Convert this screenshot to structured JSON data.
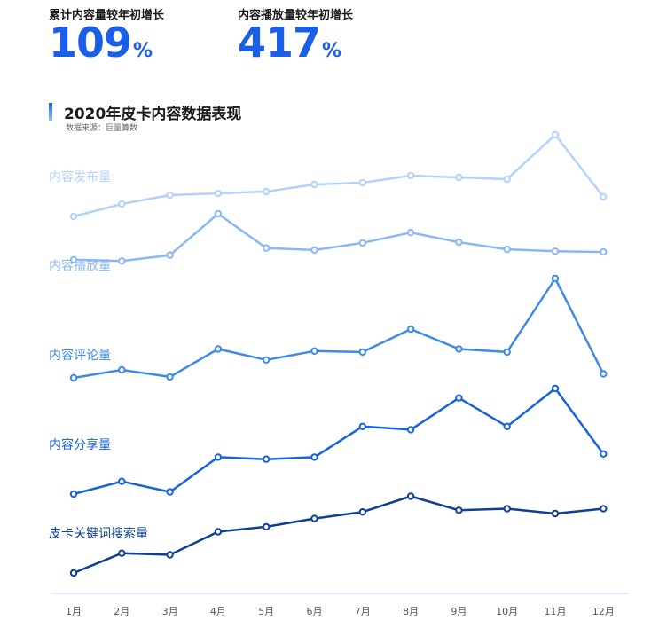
{
  "metrics": [
    {
      "label": "累计内容量较年初增长",
      "value": "109",
      "unit": "%"
    },
    {
      "label": "内容播放量较年初增长",
      "value": "417",
      "unit": "%"
    }
  ],
  "header": {
    "title": "2020年皮卡内容数据表现",
    "source": "数据来源：巨量算数"
  },
  "chart_data": {
    "type": "line",
    "title": "2020年皮卡内容数据表现",
    "categories": [
      "1月",
      "2月",
      "3月",
      "4月",
      "5月",
      "6月",
      "7月",
      "8月",
      "9月",
      "10月",
      "11月",
      "12月"
    ],
    "y_scale": "per-series, no y-axis shown",
    "grid": false,
    "series": [
      {
        "name": "内容发布量",
        "color": "#b3d2fb",
        "values": [
          8,
          22,
          32,
          34,
          36,
          44,
          46,
          54,
          52,
          50,
          100,
          30
        ]
      },
      {
        "name": "内容播放量",
        "color": "#8ab8f4",
        "values": [
          29,
          27,
          36,
          100,
          47,
          44,
          55,
          71,
          56,
          45,
          42,
          41
        ]
      },
      {
        "name": "内容评论量",
        "color": "#3d8ae9",
        "values": [
          0,
          8,
          1,
          29,
          18,
          27,
          26,
          49,
          29,
          26,
          100,
          4
        ]
      },
      {
        "name": "内容分享量",
        "color": "#1664dd",
        "values": [
          0,
          12,
          2,
          35,
          33,
          35,
          64,
          61,
          91,
          64,
          100,
          38
        ]
      },
      {
        "name": "皮卡关键词搜索量",
        "color": "#0f3f96",
        "values": [
          0,
          24,
          22,
          50,
          56,
          66,
          74,
          93,
          76,
          78,
          72,
          78
        ]
      }
    ]
  }
}
